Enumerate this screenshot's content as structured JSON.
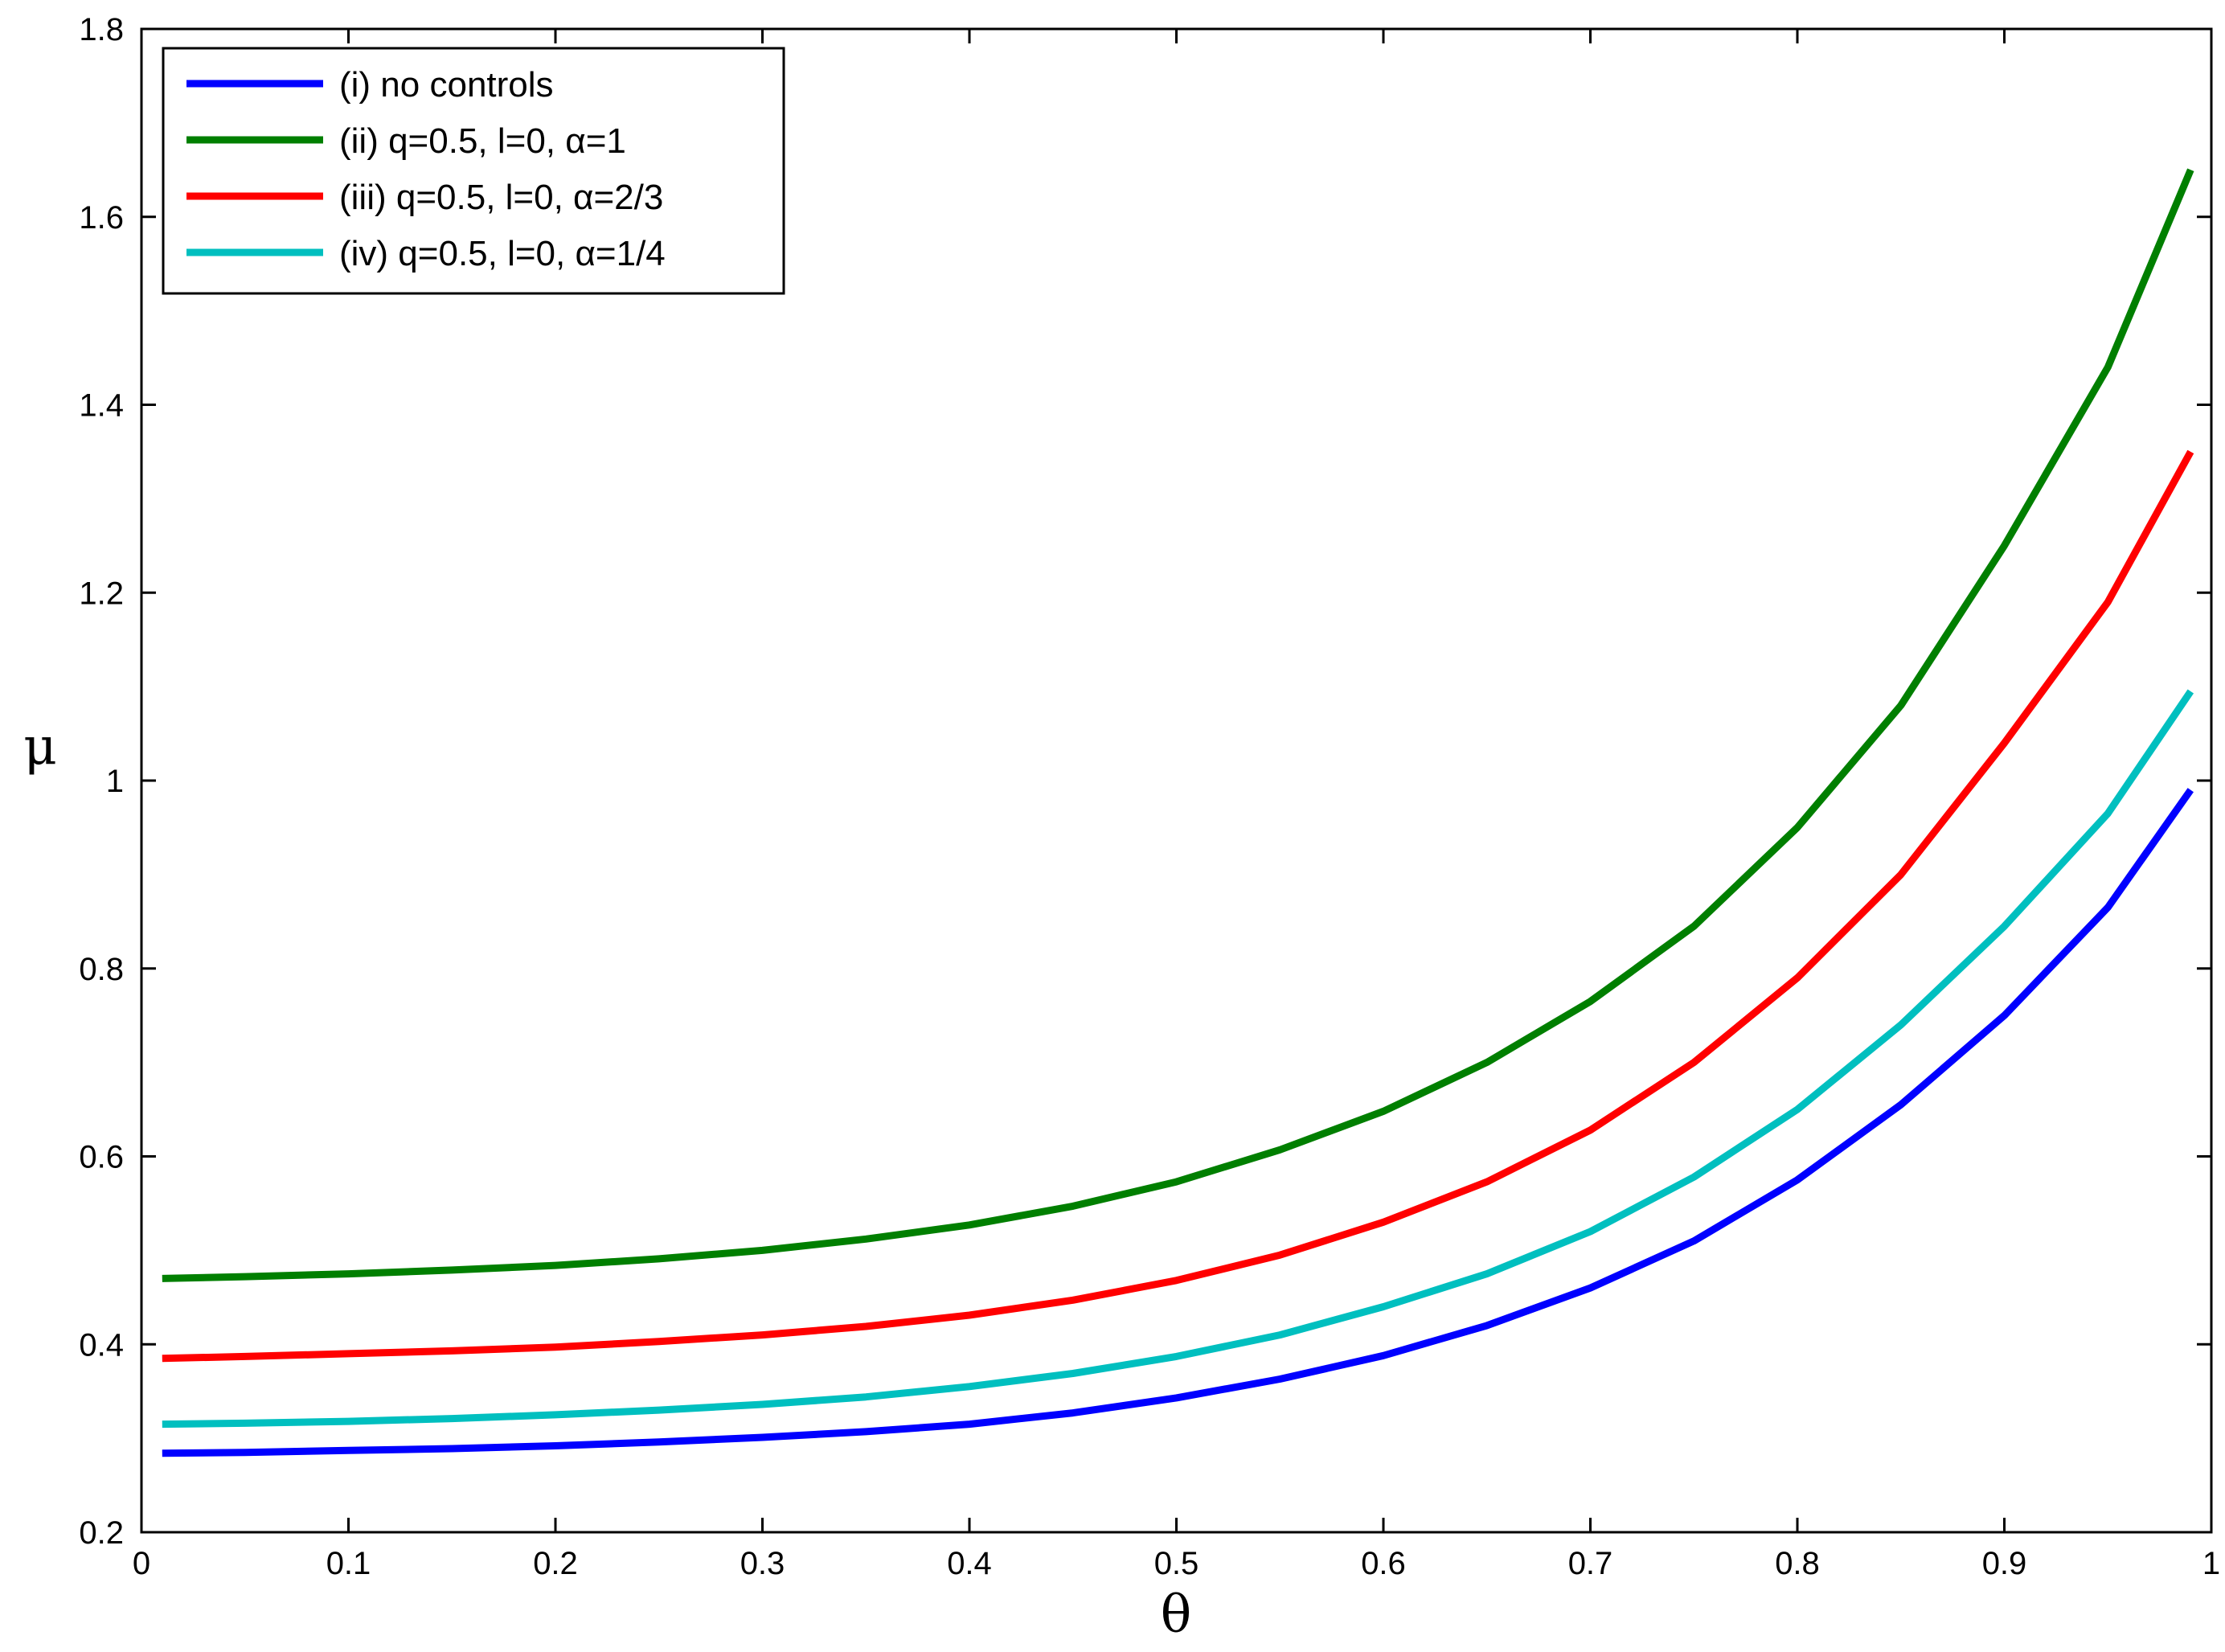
{
  "chart_data": {
    "type": "line",
    "xlabel": "θ",
    "ylabel": "μ",
    "xlim": [
      0,
      1
    ],
    "ylim": [
      0.2,
      1.8
    ],
    "xticks": [
      "0",
      "0.1",
      "0.2",
      "0.3",
      "0.4",
      "0.5",
      "0.6",
      "0.7",
      "0.8",
      "0.9",
      "1"
    ],
    "yticks": [
      "0.2",
      "0.4",
      "0.6",
      "0.8",
      "1",
      "1.2",
      "1.4",
      "1.6",
      "1.8"
    ],
    "grid": false,
    "legend_position": "top-left",
    "x": [
      0.01,
      0.05,
      0.1,
      0.15,
      0.2,
      0.25,
      0.3,
      0.35,
      0.4,
      0.45,
      0.5,
      0.55,
      0.6,
      0.65,
      0.7,
      0.75,
      0.8,
      0.85,
      0.9,
      0.95,
      0.99
    ],
    "series": [
      {
        "name": "(i) no controls",
        "color": "#0000ff",
        "values": [
          0.284,
          0.285,
          0.287,
          0.289,
          0.292,
          0.296,
          0.301,
          0.307,
          0.315,
          0.327,
          0.343,
          0.363,
          0.388,
          0.42,
          0.46,
          0.51,
          0.575,
          0.655,
          0.75,
          0.865,
          0.99
        ]
      },
      {
        "name": "(ii) q=0.5, l=0, α=1",
        "color": "#007f00",
        "values": [
          0.47,
          0.472,
          0.475,
          0.479,
          0.484,
          0.491,
          0.5,
          0.512,
          0.527,
          0.547,
          0.573,
          0.607,
          0.648,
          0.7,
          0.765,
          0.845,
          0.95,
          1.08,
          1.25,
          1.44,
          1.65
        ]
      },
      {
        "name": "(iii) q=0.5, l=0, α=2/3",
        "color": "#ff0000",
        "values": [
          0.385,
          0.387,
          0.39,
          0.393,
          0.397,
          0.403,
          0.41,
          0.419,
          0.431,
          0.447,
          0.468,
          0.495,
          0.53,
          0.573,
          0.628,
          0.7,
          0.79,
          0.9,
          1.04,
          1.19,
          1.35
        ]
      },
      {
        "name": "(iv) q=0.5, l=0, α=1/4",
        "color": "#00bfbf",
        "values": [
          0.315,
          0.316,
          0.318,
          0.321,
          0.325,
          0.33,
          0.336,
          0.344,
          0.355,
          0.369,
          0.387,
          0.41,
          0.44,
          0.475,
          0.52,
          0.578,
          0.65,
          0.74,
          0.845,
          0.965,
          1.095
        ]
      }
    ]
  }
}
